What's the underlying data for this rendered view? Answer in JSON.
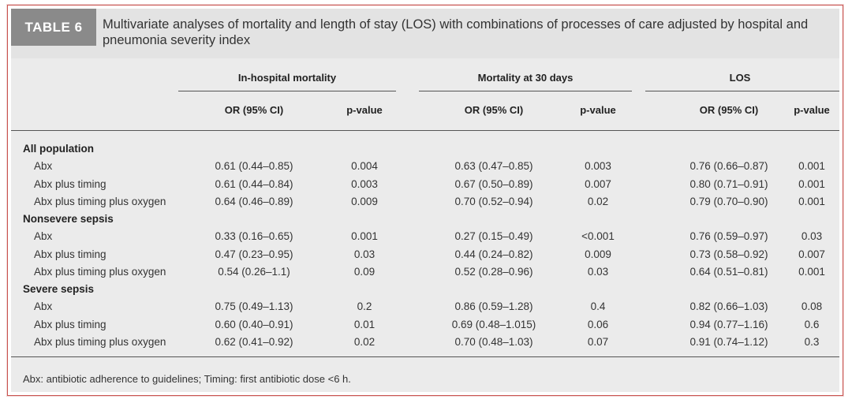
{
  "table": {
    "label": "TABLE 6",
    "title": "Multivariate analyses of mortality and length of stay (LOS) with combinations of processes of care adjusted by hospital and pneumonia severity index",
    "groups": [
      "In-hospital mortality",
      "Mortality at 30 days",
      "LOS"
    ],
    "subheaders": [
      "OR (95% CI)",
      "p-value"
    ],
    "sections": [
      {
        "name": "All population",
        "rows": [
          {
            "label": "Abx",
            "cells": [
              "0.61 (0.44–0.85)",
              "0.004",
              "0.63 (0.47–0.85)",
              "0.003",
              "0.76 (0.66–0.87)",
              "0.001"
            ]
          },
          {
            "label": "Abx plus timing",
            "cells": [
              "0.61 (0.44–0.84)",
              "0.003",
              "0.67 (0.50–0.89)",
              "0.007",
              "0.80 (0.71–0.91)",
              "0.001"
            ]
          },
          {
            "label": "Abx plus timing plus oxygen",
            "cells": [
              "0.64 (0.46–0.89)",
              "0.009",
              "0.70 (0.52–0.94)",
              "0.02",
              "0.79 (0.70–0.90)",
              "0.001"
            ]
          }
        ]
      },
      {
        "name": "Nonsevere sepsis",
        "rows": [
          {
            "label": "Abx",
            "cells": [
              "0.33 (0.16–0.65)",
              "0.001",
              "0.27 (0.15–0.49)",
              "<0.001",
              "0.76 (0.59–0.97)",
              "0.03"
            ]
          },
          {
            "label": "Abx plus timing",
            "cells": [
              "0.47 (0.23–0.95)",
              "0.03",
              "0.44 (0.24–0.82)",
              "0.009",
              "0.73 (0.58–0.92)",
              "0.007"
            ]
          },
          {
            "label": "Abx plus timing plus oxygen",
            "cells": [
              "0.54 (0.26–1.1)",
              "0.09",
              "0.52 (0.28–0.96)",
              "0.03",
              "0.64 (0.51–0.81)",
              "0.001"
            ]
          }
        ]
      },
      {
        "name": "Severe sepsis",
        "rows": [
          {
            "label": "Abx",
            "cells": [
              "0.75 (0.49–1.13)",
              "0.2",
              "0.86 (0.59–1.28)",
              "0.4",
              "0.82 (0.66–1.03)",
              "0.08"
            ]
          },
          {
            "label": "Abx plus timing",
            "cells": [
              "0.60 (0.40–0.91)",
              "0.01",
              "0.69 (0.48–1.015)",
              "0.06",
              "0.94 (0.77–1.16)",
              "0.6"
            ]
          },
          {
            "label": "Abx plus timing plus oxygen",
            "cells": [
              "0.62 (0.41–0.92)",
              "0.02",
              "0.70 (0.48–1.03)",
              "0.07",
              "0.91 (0.74–1.12)",
              "0.3"
            ]
          }
        ]
      }
    ],
    "footnote": "Abx: antibiotic adherence to guidelines; Timing: first antibiotic dose <6 h."
  }
}
